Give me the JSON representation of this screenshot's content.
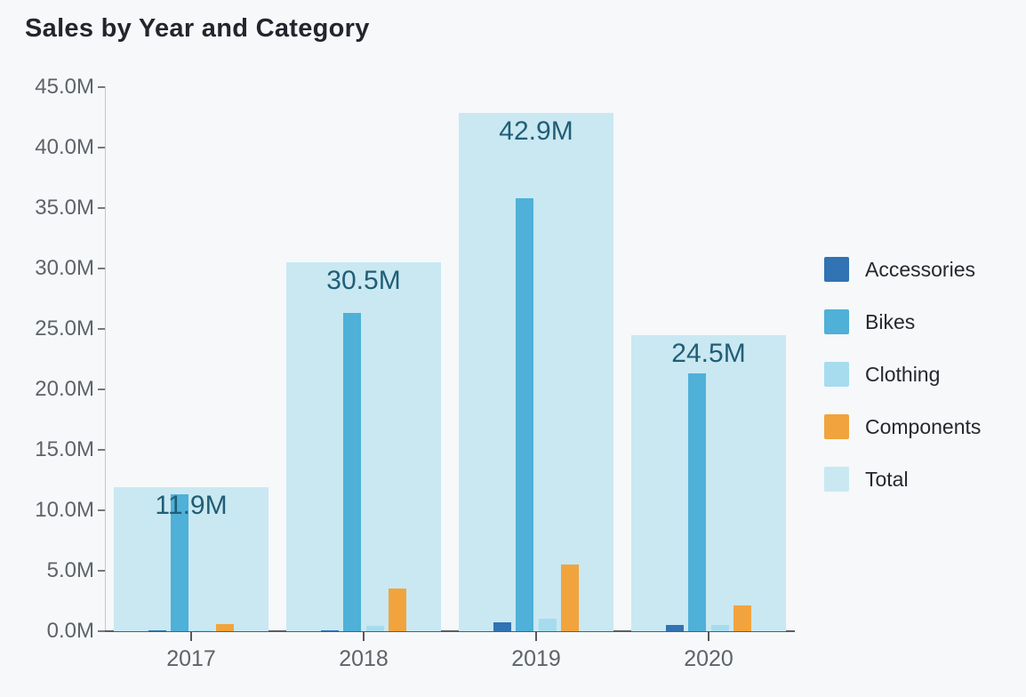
{
  "chart_data": {
    "type": "bar",
    "title": "Sales by Year and Category",
    "categories": [
      "2017",
      "2018",
      "2019",
      "2020"
    ],
    "series": [
      {
        "name": "Accessories",
        "color": "#3173b3",
        "values": [
          0.1,
          0.1,
          0.7,
          0.5
        ]
      },
      {
        "name": "Bikes",
        "color": "#4fb0d8",
        "values": [
          11.3,
          26.3,
          35.8,
          21.3
        ]
      },
      {
        "name": "Clothing",
        "color": "#a6dcee",
        "values": [
          0.05,
          0.45,
          1.0,
          0.5
        ]
      },
      {
        "name": "Components",
        "color": "#f1a43e",
        "values": [
          0.6,
          3.5,
          5.5,
          2.1
        ]
      },
      {
        "name": "Total",
        "color": "#c9e8f2",
        "values": [
          11.9,
          30.5,
          42.9,
          24.5
        ],
        "role": "background"
      }
    ],
    "total_labels": [
      "11.9M",
      "30.5M",
      "42.9M",
      "24.5M"
    ],
    "y_ticks": [
      "45.0M",
      "40.0M",
      "35.0M",
      "30.0M",
      "25.0M",
      "20.0M",
      "15.0M",
      "10.0M",
      "5.0M",
      "0.0M"
    ],
    "ylim": [
      0,
      45
    ],
    "units": "M",
    "xlabel": "",
    "ylabel": "",
    "grid": false,
    "legend_position": "right",
    "colors": {
      "background": "#f6f8fa",
      "title": "#23252d",
      "axis_text": "#5f6369",
      "data_label": "#215e76",
      "x_axis_line": "#595d63",
      "y_axis_line": "#c3c7cb"
    }
  }
}
